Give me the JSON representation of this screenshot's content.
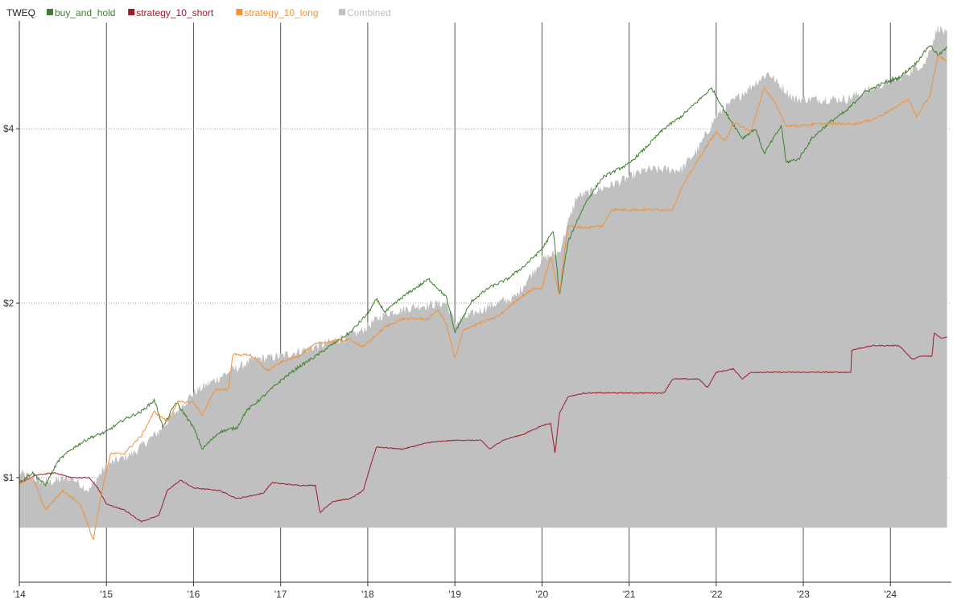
{
  "chart_data": {
    "type": "line",
    "title": "TWEQ",
    "x_tick_labels": [
      "'14",
      "'15",
      "'16",
      "'17",
      "'18",
      "'19",
      "'20",
      "'21",
      "'22",
      "'23",
      "'24"
    ],
    "x_tick_years": [
      2014,
      2015,
      2016,
      2017,
      2018,
      2019,
      2020,
      2021,
      2022,
      2023,
      2024
    ],
    "y_scale": "log",
    "y_tick_labels": [
      "$1",
      "$2",
      "$4"
    ],
    "y_tick_values": [
      1,
      2,
      4
    ],
    "ylim": [
      0.66,
      6.1
    ],
    "xlim": [
      2014.0,
      2024.7
    ],
    "grid": {
      "vertical_year_lines": true,
      "horizontal_dotted": true
    },
    "legend": {
      "placement": "top-left"
    },
    "colors": {
      "buy_and_hold": "#3f7f2f",
      "strategy_10_short": "#9b1c2c",
      "strategy_10_long": "#f0923a",
      "combined": "#c0c0c0"
    },
    "series": [
      {
        "name": "buy_and_hold",
        "points": [
          [
            2014.0,
            0.98
          ],
          [
            2014.15,
            1.02
          ],
          [
            2014.3,
            0.97
          ],
          [
            2014.45,
            1.07
          ],
          [
            2014.6,
            1.12
          ],
          [
            2014.8,
            1.17
          ],
          [
            2015.0,
            1.2
          ],
          [
            2015.2,
            1.26
          ],
          [
            2015.4,
            1.3
          ],
          [
            2015.55,
            1.36
          ],
          [
            2015.65,
            1.22
          ],
          [
            2015.8,
            1.35
          ],
          [
            2016.0,
            1.22
          ],
          [
            2016.1,
            1.12
          ],
          [
            2016.3,
            1.2
          ],
          [
            2016.5,
            1.22
          ],
          [
            2016.6,
            1.3
          ],
          [
            2016.8,
            1.38
          ],
          [
            2017.0,
            1.47
          ],
          [
            2017.2,
            1.55
          ],
          [
            2017.4,
            1.62
          ],
          [
            2017.6,
            1.7
          ],
          [
            2017.8,
            1.78
          ],
          [
            2018.0,
            1.92
          ],
          [
            2018.1,
            2.03
          ],
          [
            2018.2,
            1.93
          ],
          [
            2018.4,
            2.05
          ],
          [
            2018.7,
            2.2
          ],
          [
            2018.9,
            2.05
          ],
          [
            2019.0,
            1.78
          ],
          [
            2019.2,
            2.02
          ],
          [
            2019.4,
            2.13
          ],
          [
            2019.6,
            2.2
          ],
          [
            2019.8,
            2.32
          ],
          [
            2020.0,
            2.48
          ],
          [
            2020.13,
            2.66
          ],
          [
            2020.2,
            2.05
          ],
          [
            2020.3,
            2.55
          ],
          [
            2020.5,
            2.98
          ],
          [
            2020.7,
            3.3
          ],
          [
            2021.0,
            3.48
          ],
          [
            2021.2,
            3.72
          ],
          [
            2021.4,
            4.0
          ],
          [
            2021.6,
            4.2
          ],
          [
            2021.8,
            4.48
          ],
          [
            2021.95,
            4.7
          ],
          [
            2022.1,
            4.28
          ],
          [
            2022.3,
            3.85
          ],
          [
            2022.45,
            4.0
          ],
          [
            2022.55,
            3.62
          ],
          [
            2022.75,
            4.05
          ],
          [
            2022.8,
            3.5
          ],
          [
            2022.95,
            3.55
          ],
          [
            2023.1,
            3.85
          ],
          [
            2023.3,
            4.1
          ],
          [
            2023.5,
            4.3
          ],
          [
            2023.7,
            4.62
          ],
          [
            2023.9,
            4.78
          ],
          [
            2024.1,
            4.9
          ],
          [
            2024.3,
            5.2
          ],
          [
            2024.45,
            5.58
          ],
          [
            2024.55,
            5.35
          ],
          [
            2024.65,
            5.52
          ]
        ]
      },
      {
        "name": "strategy_10_short",
        "points": [
          [
            2014.0,
            0.98
          ],
          [
            2014.2,
            1.01
          ],
          [
            2014.4,
            1.02
          ],
          [
            2014.6,
            1.0
          ],
          [
            2014.8,
            1.0
          ],
          [
            2014.9,
            0.96
          ],
          [
            2015.0,
            0.9
          ],
          [
            2015.2,
            0.88
          ],
          [
            2015.4,
            0.84
          ],
          [
            2015.6,
            0.86
          ],
          [
            2015.7,
            0.95
          ],
          [
            2015.85,
            0.99
          ],
          [
            2016.0,
            0.96
          ],
          [
            2016.3,
            0.95
          ],
          [
            2016.5,
            0.92
          ],
          [
            2016.8,
            0.94
          ],
          [
            2016.9,
            0.98
          ],
          [
            2017.2,
            0.97
          ],
          [
            2017.4,
            0.97
          ],
          [
            2017.45,
            0.87
          ],
          [
            2017.6,
            0.91
          ],
          [
            2017.8,
            0.92
          ],
          [
            2017.95,
            0.95
          ],
          [
            2018.1,
            1.13
          ],
          [
            2018.4,
            1.12
          ],
          [
            2018.7,
            1.15
          ],
          [
            2019.0,
            1.16
          ],
          [
            2019.3,
            1.16
          ],
          [
            2019.4,
            1.12
          ],
          [
            2019.55,
            1.16
          ],
          [
            2019.8,
            1.19
          ],
          [
            2020.0,
            1.23
          ],
          [
            2020.1,
            1.24
          ],
          [
            2020.15,
            1.1
          ],
          [
            2020.2,
            1.29
          ],
          [
            2020.3,
            1.38
          ],
          [
            2020.5,
            1.4
          ],
          [
            2020.8,
            1.4
          ],
          [
            2021.2,
            1.4
          ],
          [
            2021.4,
            1.4
          ],
          [
            2021.5,
            1.48
          ],
          [
            2021.8,
            1.48
          ],
          [
            2021.9,
            1.43
          ],
          [
            2022.0,
            1.52
          ],
          [
            2022.2,
            1.54
          ],
          [
            2022.3,
            1.48
          ],
          [
            2022.4,
            1.52
          ],
          [
            2022.8,
            1.52
          ],
          [
            2023.3,
            1.52
          ],
          [
            2023.55,
            1.52
          ],
          [
            2023.55,
            1.66
          ],
          [
            2023.8,
            1.69
          ],
          [
            2024.1,
            1.69
          ],
          [
            2024.25,
            1.6
          ],
          [
            2024.35,
            1.62
          ],
          [
            2024.48,
            1.62
          ],
          [
            2024.5,
            1.78
          ],
          [
            2024.58,
            1.74
          ],
          [
            2024.65,
            1.75
          ]
        ]
      },
      {
        "name": "strategy_10_long",
        "points": [
          [
            2014.0,
            0.98
          ],
          [
            2014.15,
            1.0
          ],
          [
            2014.3,
            0.88
          ],
          [
            2014.5,
            0.95
          ],
          [
            2014.7,
            0.9
          ],
          [
            2014.85,
            0.78
          ],
          [
            2014.95,
            0.95
          ],
          [
            2015.05,
            1.1
          ],
          [
            2015.2,
            1.1
          ],
          [
            2015.4,
            1.18
          ],
          [
            2015.55,
            1.3
          ],
          [
            2015.7,
            1.25
          ],
          [
            2015.82,
            1.35
          ],
          [
            2016.0,
            1.35
          ],
          [
            2016.1,
            1.28
          ],
          [
            2016.25,
            1.42
          ],
          [
            2016.4,
            1.42
          ],
          [
            2016.45,
            1.63
          ],
          [
            2016.65,
            1.63
          ],
          [
            2016.85,
            1.53
          ],
          [
            2017.0,
            1.58
          ],
          [
            2017.2,
            1.62
          ],
          [
            2017.4,
            1.7
          ],
          [
            2017.6,
            1.72
          ],
          [
            2017.8,
            1.73
          ],
          [
            2017.95,
            1.68
          ],
          [
            2018.2,
            1.82
          ],
          [
            2018.4,
            1.88
          ],
          [
            2018.7,
            1.88
          ],
          [
            2018.8,
            1.95
          ],
          [
            2018.9,
            1.85
          ],
          [
            2019.0,
            1.6
          ],
          [
            2019.1,
            1.8
          ],
          [
            2019.3,
            1.85
          ],
          [
            2019.5,
            1.9
          ],
          [
            2019.7,
            2.02
          ],
          [
            2019.9,
            2.12
          ],
          [
            2020.0,
            2.12
          ],
          [
            2020.1,
            2.4
          ],
          [
            2020.2,
            2.06
          ],
          [
            2020.3,
            2.72
          ],
          [
            2020.5,
            2.7
          ],
          [
            2020.7,
            2.72
          ],
          [
            2020.8,
            2.9
          ],
          [
            2021.2,
            2.9
          ],
          [
            2021.5,
            2.9
          ],
          [
            2021.6,
            3.15
          ],
          [
            2021.8,
            3.55
          ],
          [
            2022.0,
            3.95
          ],
          [
            2022.1,
            3.8
          ],
          [
            2022.2,
            4.1
          ],
          [
            2022.4,
            3.95
          ],
          [
            2022.55,
            4.7
          ],
          [
            2022.65,
            4.5
          ],
          [
            2022.8,
            4.05
          ],
          [
            2022.95,
            4.05
          ],
          [
            2023.2,
            4.08
          ],
          [
            2023.6,
            4.08
          ],
          [
            2023.8,
            4.15
          ],
          [
            2024.0,
            4.3
          ],
          [
            2024.2,
            4.5
          ],
          [
            2024.3,
            4.2
          ],
          [
            2024.45,
            4.55
          ],
          [
            2024.55,
            5.35
          ],
          [
            2024.65,
            5.22
          ]
        ]
      },
      {
        "name": "Combined",
        "points": [
          [
            2014.0,
            1.02
          ],
          [
            2014.3,
            0.98
          ],
          [
            2014.6,
            1.0
          ],
          [
            2014.8,
            0.95
          ],
          [
            2015.0,
            1.05
          ],
          [
            2015.3,
            1.1
          ],
          [
            2015.6,
            1.2
          ],
          [
            2015.8,
            1.3
          ],
          [
            2016.0,
            1.4
          ],
          [
            2016.4,
            1.52
          ],
          [
            2016.7,
            1.6
          ],
          [
            2017.0,
            1.62
          ],
          [
            2017.5,
            1.7
          ],
          [
            2017.9,
            1.78
          ],
          [
            2018.2,
            1.92
          ],
          [
            2018.6,
            1.98
          ],
          [
            2018.9,
            2.0
          ],
          [
            2019.0,
            1.85
          ],
          [
            2019.4,
            1.98
          ],
          [
            2019.7,
            2.05
          ],
          [
            2020.0,
            2.38
          ],
          [
            2020.2,
            2.45
          ],
          [
            2020.4,
            3.05
          ],
          [
            2020.8,
            3.2
          ],
          [
            2021.2,
            3.4
          ],
          [
            2021.6,
            3.4
          ],
          [
            2021.8,
            3.7
          ],
          [
            2022.0,
            4.2
          ],
          [
            2022.3,
            4.6
          ],
          [
            2022.6,
            5.0
          ],
          [
            2022.7,
            4.8
          ],
          [
            2022.9,
            4.5
          ],
          [
            2023.1,
            4.5
          ],
          [
            2023.5,
            4.5
          ],
          [
            2023.8,
            4.7
          ],
          [
            2024.1,
            4.9
          ],
          [
            2024.4,
            5.2
          ],
          [
            2024.55,
            6.0
          ],
          [
            2024.65,
            5.8
          ]
        ],
        "floor_value": 0.82
      }
    ]
  }
}
